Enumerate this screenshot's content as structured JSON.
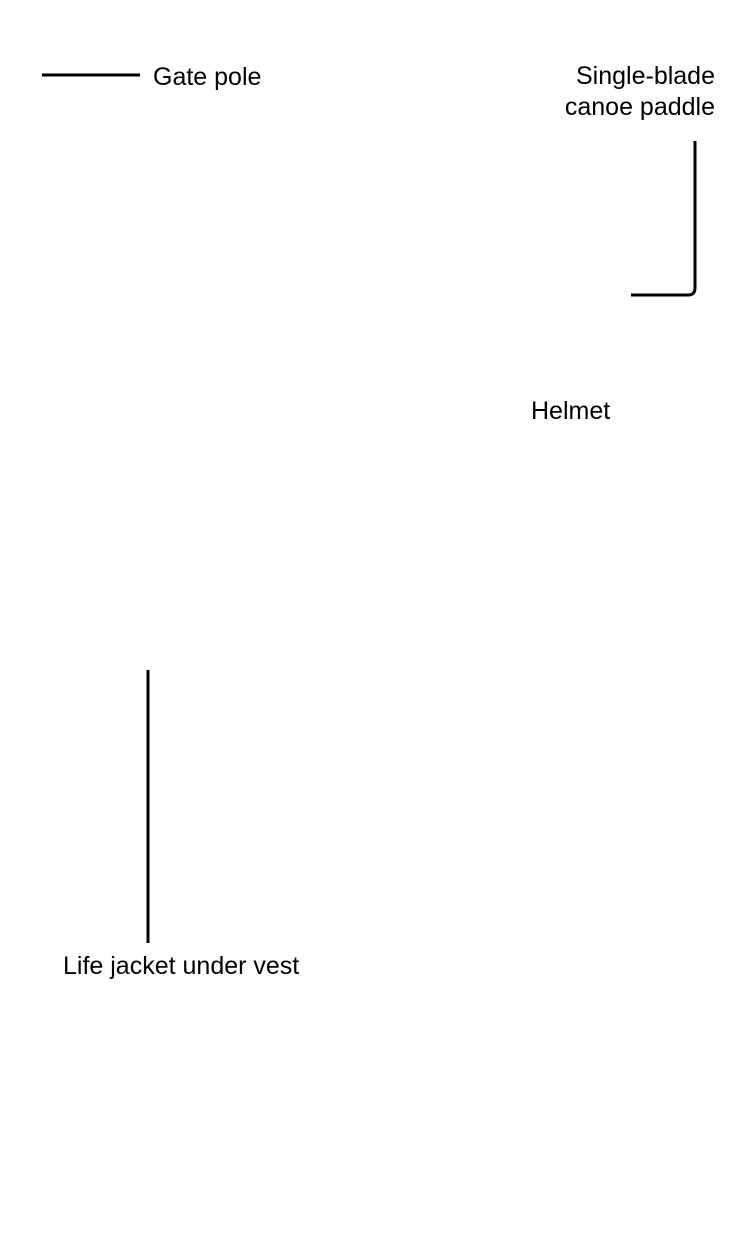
{
  "labels": {
    "gate_pole": "Gate pole",
    "paddle": {
      "line1": "Single-blade",
      "line2": "canoe paddle"
    },
    "helmet": "Helmet",
    "life_jacket": "Life jacket under vest"
  },
  "colors": {
    "line": "#000000",
    "text": "#000000",
    "background": "#ffffff"
  }
}
